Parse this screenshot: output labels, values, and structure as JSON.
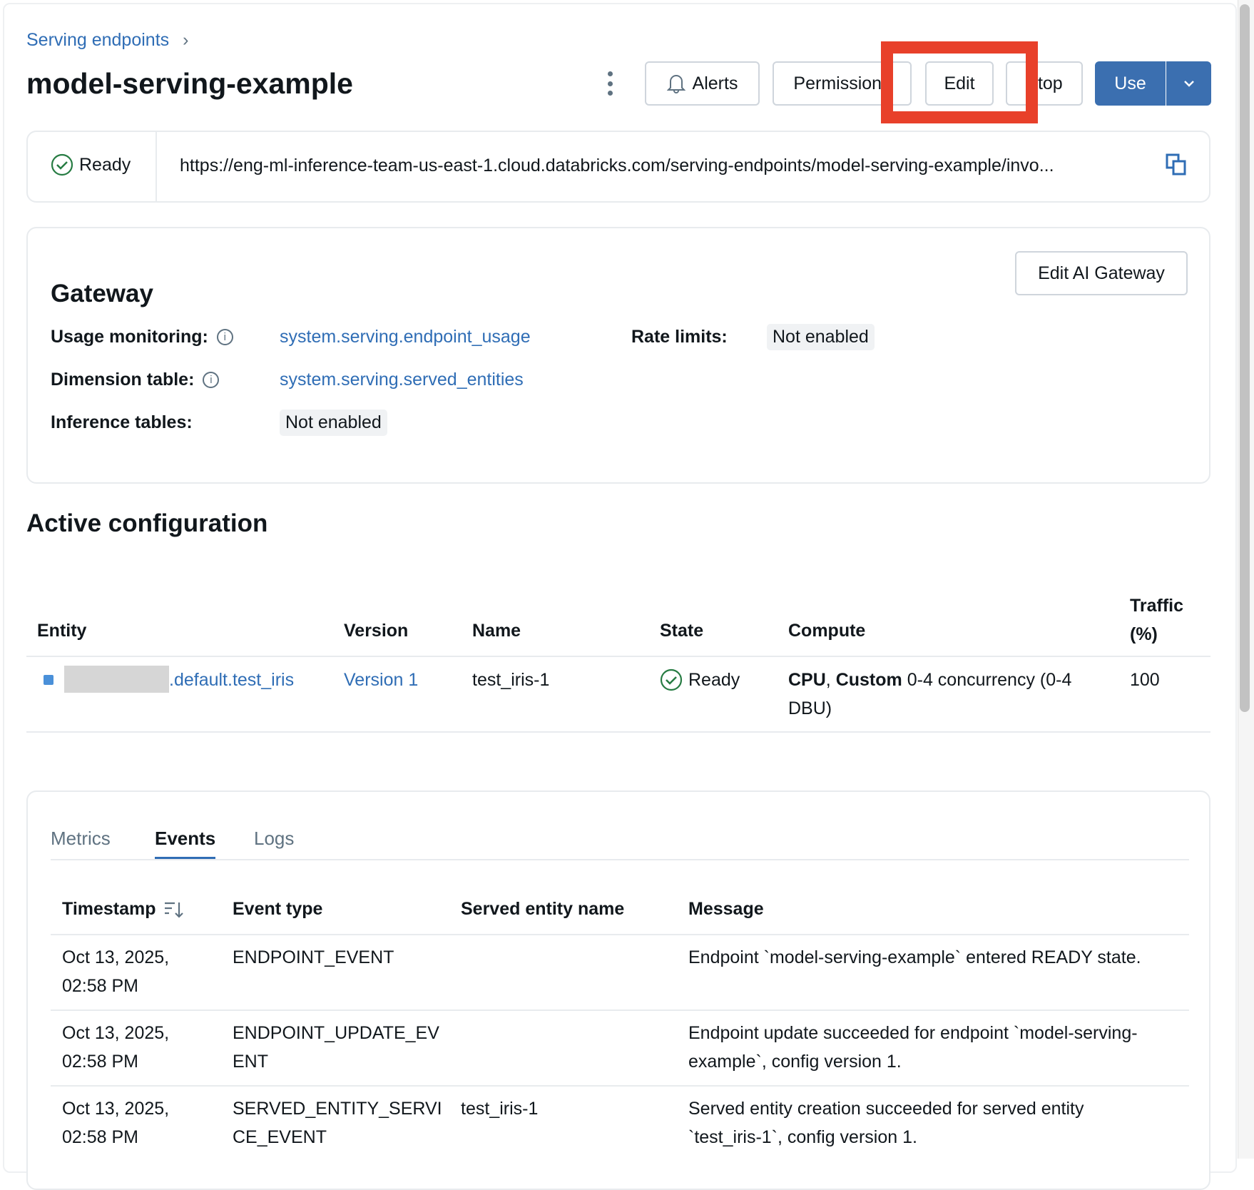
{
  "breadcrumb": {
    "label": "Serving endpoints",
    "sep": "›"
  },
  "title": "model-serving-example",
  "toolbar": {
    "alerts": "Alerts",
    "permissions": "Permissions",
    "edit": "Edit",
    "stop": "Stop",
    "use": "Use"
  },
  "highlight_color": "#e8402a",
  "endpoint": {
    "status": "Ready",
    "url": "https://eng-ml-inference-team-us-east-1.cloud.databricks.com/serving-endpoints/model-serving-example/invo..."
  },
  "gateway": {
    "title": "Gateway",
    "edit_button": "Edit AI Gateway",
    "usage_label": "Usage monitoring:",
    "usage_value": "system.serving.endpoint_usage",
    "rate_label": "Rate limits:",
    "rate_value": "Not enabled",
    "dimension_label": "Dimension table:",
    "dimension_value": "system.serving.served_entities",
    "inference_label": "Inference tables:",
    "inference_value": "Not enabled"
  },
  "active": {
    "title": "Active configuration",
    "headers": {
      "entity": "Entity",
      "version": "Version",
      "name": "Name",
      "state": "State",
      "compute": "Compute",
      "traffic": "Traffic (%)"
    },
    "row": {
      "entity": ".default.test_iris",
      "version": "Version 1",
      "name": "test_iris-1",
      "state": "Ready",
      "compute_bold": "CPU",
      "compute_sep": ", ",
      "compute_bold2": "Custom",
      "compute_rest": " 0-4 concurrency (0-4 DBU)",
      "traffic": "100"
    }
  },
  "tabs": [
    {
      "label": "Metrics"
    },
    {
      "label": "Events",
      "active": true
    },
    {
      "label": "Logs"
    }
  ],
  "events": {
    "headers": {
      "timestamp": "Timestamp",
      "type": "Event type",
      "entity": "Served entity name",
      "message": "Message"
    },
    "rows": [
      {
        "timestamp": "Oct 13, 2025, 02:58 PM",
        "type": "ENDPOINT_EVENT",
        "entity": "",
        "message": "Endpoint `model-serving-example` entered READY state."
      },
      {
        "timestamp": "Oct 13, 2025, 02:58 PM",
        "type": "ENDPOINT_UPDATE_EVENT",
        "entity": "",
        "message": "Endpoint update succeeded for endpoint `model-serving-example`, config version 1."
      },
      {
        "timestamp": "Oct 13, 2025, 02:58 PM",
        "type": "SERVED_ENTITY_SERVICE_EVENT",
        "entity": "test_iris-1",
        "message": "Served entity creation succeeded for served entity `test_iris-1`, config version 1."
      }
    ]
  }
}
